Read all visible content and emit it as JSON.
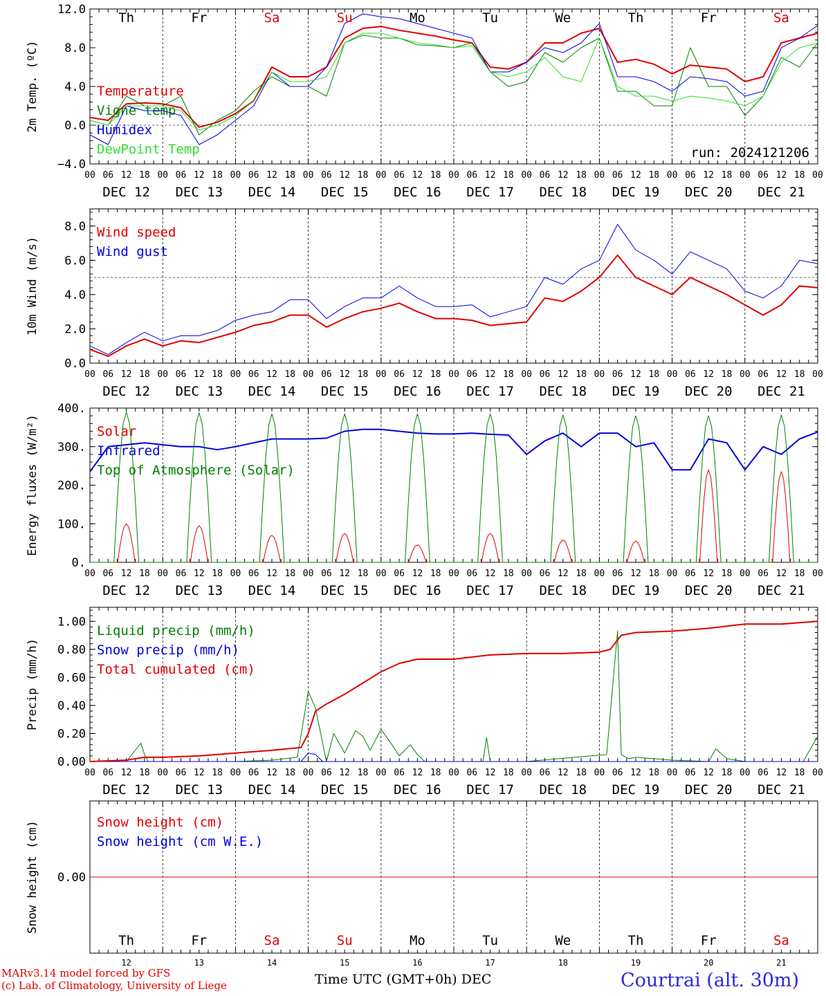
{
  "page": {
    "run_label": "run: 2024121206",
    "footer_left_1": "MARv3.14 model forced by GFS",
    "footer_left_2": "(c) Lab. of Climatology, University of Liege",
    "footer_center": "Time UTC (GMT+0h) DEC",
    "station": "Courtrai (alt. 30m)"
  },
  "colors": {
    "red": "#e00000",
    "blue": "#0000e0",
    "green": "#008000",
    "light_green": "#33dd33",
    "weekend": "#e00000",
    "weekday": "#000000"
  },
  "days": {
    "names": [
      "Th",
      "Fr",
      "Sa",
      "Su",
      "Mo",
      "Tu",
      "We",
      "Th",
      "Fr",
      "Sa"
    ],
    "weekend": [
      false,
      false,
      true,
      true,
      false,
      false,
      false,
      false,
      false,
      true
    ],
    "dates": [
      "DEC 12",
      "DEC 13",
      "DEC 14",
      "DEC 15",
      "DEC 16",
      "DEC 17",
      "DEC 18",
      "DEC 19",
      "DEC 20",
      "DEC 21"
    ],
    "day_numbers": [
      "12",
      "13",
      "14",
      "15",
      "16",
      "17",
      "18",
      "19",
      "20",
      "21"
    ],
    "hour_ticks": [
      "00",
      "06",
      "12",
      "18"
    ],
    "last_tick": "00"
  },
  "chart_data": [
    {
      "type": "line",
      "id": "temp",
      "ylabel": "2m Temp. (ºC)",
      "ylim": [
        -4,
        12
      ],
      "yticks": [
        "−4.0",
        "0.0",
        "4.0",
        "8.0",
        "12.0"
      ],
      "yticks_values": [
        -4,
        0,
        4,
        8,
        12
      ],
      "reference_line": 0,
      "x_unit": "days since DEC 12 00 UTC",
      "series": [
        {
          "name": "Temperature",
          "color": "#e00000",
          "width": 2,
          "x": [
            0,
            0.25,
            0.5,
            0.75,
            1,
            1.25,
            1.5,
            1.75,
            2,
            2.25,
            2.5,
            2.75,
            3,
            3.25,
            3.5,
            3.75,
            4,
            4.25,
            4.5,
            4.75,
            5,
            5.25,
            5.5,
            5.75,
            6,
            6.25,
            6.5,
            6.75,
            7,
            7.25,
            7.5,
            7.75,
            8,
            8.25,
            8.5,
            8.75,
            9,
            9.25,
            9.5,
            9.75,
            10
          ],
          "y": [
            0.8,
            0.5,
            2.2,
            2.3,
            2.2,
            1.8,
            -0.2,
            0.3,
            1.2,
            2.5,
            6.0,
            5.0,
            5.0,
            6.0,
            9.0,
            10.0,
            10.2,
            9.8,
            9.5,
            9.2,
            8.8,
            8.5,
            6.0,
            5.8,
            6.5,
            8.5,
            8.5,
            9.5,
            10.0,
            6.5,
            6.8,
            6.3,
            5.3,
            6.2,
            6.0,
            5.8,
            4.5,
            5.0,
            8.5,
            9.0,
            9.5
          ]
        },
        {
          "name": "Vigne temp",
          "color": "#008000",
          "width": 1,
          "x": [
            0,
            0.25,
            0.5,
            0.75,
            1,
            1.25,
            1.5,
            1.75,
            2,
            2.25,
            2.5,
            2.75,
            3,
            3.25,
            3.5,
            3.75,
            4,
            4.25,
            4.5,
            4.75,
            5,
            5.25,
            5.5,
            5.75,
            6,
            6.25,
            6.5,
            6.75,
            7,
            7.25,
            7.5,
            7.75,
            8,
            8.25,
            8.5,
            8.75,
            9,
            9.25,
            9.5,
            9.75,
            10
          ],
          "y": [
            0.5,
            0.0,
            3.0,
            2.0,
            2.0,
            3.0,
            -1.0,
            0.5,
            1.5,
            3.5,
            5.0,
            4.0,
            4.0,
            3.0,
            8.5,
            9.3,
            9.0,
            9.0,
            8.3,
            8.2,
            8.0,
            8.5,
            5.5,
            4.0,
            4.5,
            7.5,
            6.5,
            8.0,
            9.0,
            3.5,
            3.5,
            2.0,
            2.0,
            8.0,
            4.0,
            4.0,
            1.0,
            3.0,
            7.0,
            6.0,
            8.5
          ]
        },
        {
          "name": "Humidex",
          "color": "#0000e0",
          "width": 1,
          "x": [
            0,
            0.25,
            0.5,
            0.75,
            1,
            1.25,
            1.5,
            1.75,
            2,
            2.25,
            2.5,
            2.75,
            3,
            3.25,
            3.5,
            3.75,
            4,
            4.25,
            4.5,
            4.75,
            5,
            5.25,
            5.5,
            5.75,
            6,
            6.25,
            6.5,
            6.75,
            7,
            7.25,
            7.5,
            7.75,
            8,
            8.25,
            8.5,
            8.75,
            9,
            9.25,
            9.5,
            9.75,
            10
          ],
          "y": [
            -1.0,
            -2.0,
            2.0,
            1.5,
            1.5,
            1.0,
            -2.0,
            -1.0,
            0.5,
            2.0,
            5.5,
            4.0,
            4.0,
            6.0,
            10.5,
            11.5,
            11.2,
            11.0,
            10.5,
            10.0,
            9.5,
            9.0,
            5.5,
            5.5,
            6.5,
            8.0,
            7.5,
            8.5,
            10.5,
            5.0,
            5.0,
            4.5,
            3.5,
            5.0,
            4.8,
            4.5,
            3.0,
            3.5,
            8.0,
            9.0,
            10.3
          ]
        },
        {
          "name": "DewPoint Temp",
          "color": "#33dd33",
          "width": 1,
          "x": [
            0,
            0.25,
            0.5,
            0.75,
            1,
            1.25,
            1.5,
            1.75,
            2,
            2.25,
            2.5,
            2.75,
            3,
            3.25,
            3.5,
            3.75,
            4,
            4.25,
            4.5,
            4.75,
            5,
            5.25,
            5.5,
            5.75,
            6,
            6.25,
            6.5,
            6.75,
            7,
            7.25,
            7.5,
            7.75,
            8,
            8.25,
            8.5,
            8.75,
            9,
            9.25,
            9.5,
            9.75,
            10
          ],
          "y": [
            0.5,
            0.0,
            2.0,
            2.0,
            2.0,
            1.5,
            -0.5,
            0.0,
            1.0,
            2.5,
            5.5,
            4.5,
            4.5,
            5.0,
            8.5,
            9.5,
            9.5,
            9.0,
            8.5,
            8.3,
            8.0,
            8.2,
            5.5,
            5.0,
            5.5,
            7.0,
            5.0,
            4.5,
            9.0,
            4.0,
            3.0,
            3.0,
            2.5,
            3.0,
            2.8,
            2.5,
            2.0,
            3.0,
            6.5,
            8.0,
            8.5
          ]
        }
      ]
    },
    {
      "type": "line",
      "id": "wind",
      "ylabel": "10m Wind (m/s)",
      "ylim": [
        0,
        9
      ],
      "yticks": [
        "0.0",
        "2.0",
        "4.0",
        "6.0",
        "8.0"
      ],
      "yticks_values": [
        0,
        2,
        4,
        6,
        8
      ],
      "reference_line": 5,
      "x_unit": "days since DEC 12 00 UTC",
      "series": [
        {
          "name": "Wind speed",
          "color": "#e00000",
          "width": 2,
          "x": [
            0,
            0.25,
            0.5,
            0.75,
            1,
            1.25,
            1.5,
            1.75,
            2,
            2.25,
            2.5,
            2.75,
            3,
            3.25,
            3.5,
            3.75,
            4,
            4.25,
            4.5,
            4.75,
            5,
            5.25,
            5.5,
            5.75,
            6,
            6.25,
            6.5,
            6.75,
            7,
            7.25,
            7.5,
            7.75,
            8,
            8.25,
            8.5,
            8.75,
            9,
            9.25,
            9.5,
            9.75,
            10
          ],
          "y": [
            0.8,
            0.4,
            1.0,
            1.4,
            1.0,
            1.3,
            1.2,
            1.5,
            1.8,
            2.2,
            2.4,
            2.8,
            2.8,
            2.1,
            2.6,
            3.0,
            3.2,
            3.5,
            3.0,
            2.6,
            2.6,
            2.5,
            2.2,
            2.3,
            2.4,
            3.8,
            3.6,
            4.2,
            5.0,
            6.3,
            5.0,
            4.5,
            4.0,
            5.0,
            4.5,
            4.0,
            3.4,
            2.8,
            3.4,
            4.5,
            4.4
          ]
        },
        {
          "name": "Wind gust",
          "color": "#0000e0",
          "width": 1,
          "x": [
            0,
            0.25,
            0.5,
            0.75,
            1,
            1.25,
            1.5,
            1.75,
            2,
            2.25,
            2.5,
            2.75,
            3,
            3.25,
            3.5,
            3.75,
            4,
            4.25,
            4.5,
            4.75,
            5,
            5.25,
            5.5,
            5.75,
            6,
            6.25,
            6.5,
            6.75,
            7,
            7.25,
            7.5,
            7.75,
            8,
            8.25,
            8.5,
            8.75,
            9,
            9.25,
            9.5,
            9.75,
            10
          ],
          "y": [
            1.0,
            0.5,
            1.2,
            1.8,
            1.3,
            1.6,
            1.6,
            1.9,
            2.5,
            2.8,
            3.0,
            3.7,
            3.7,
            2.6,
            3.3,
            3.8,
            3.8,
            4.5,
            3.8,
            3.3,
            3.3,
            3.4,
            2.7,
            3.0,
            3.3,
            5.0,
            4.6,
            5.5,
            6.0,
            8.1,
            6.6,
            6.0,
            5.2,
            6.5,
            6.0,
            5.5,
            4.2,
            3.8,
            4.5,
            6.0,
            5.8
          ]
        }
      ]
    },
    {
      "type": "line",
      "id": "energy",
      "ylabel": "Energy fluxes (W/m²)",
      "ylim": [
        0,
        400
      ],
      "yticks": [
        "0.",
        "100.",
        "200.",
        "300.",
        "400."
      ],
      "yticks_values": [
        0,
        100,
        200,
        300,
        400
      ],
      "x_unit": "days since DEC 12 00 UTC",
      "series": [
        {
          "name": "Solar",
          "color": "#e00000",
          "width": 1,
          "peaks": [
            100,
            95,
            70,
            75,
            45,
            75,
            58,
            55,
            240,
            235
          ]
        },
        {
          "name": "Infrared",
          "color": "#0000e0",
          "width": 2,
          "x": [
            0,
            0.25,
            0.5,
            0.75,
            1,
            1.25,
            1.5,
            1.75,
            2,
            2.25,
            2.5,
            2.75,
            3,
            3.25,
            3.5,
            3.75,
            4,
            4.25,
            4.5,
            4.75,
            5,
            5.25,
            5.5,
            5.75,
            6,
            6.25,
            6.5,
            6.75,
            7,
            7.25,
            7.5,
            7.75,
            8,
            8.25,
            8.5,
            8.75,
            9,
            9.25,
            9.5,
            9.75,
            10
          ],
          "y": [
            235,
            300,
            305,
            310,
            305,
            300,
            300,
            292,
            300,
            310,
            320,
            320,
            320,
            322,
            340,
            345,
            345,
            340,
            335,
            333,
            333,
            335,
            332,
            330,
            280,
            315,
            335,
            300,
            335,
            335,
            300,
            310,
            240,
            240,
            320,
            310,
            240,
            300,
            280,
            320,
            338
          ]
        },
        {
          "name": "Top of Atmosphere (Solar)",
          "color": "#008000",
          "width": 1,
          "peaks": [
            390,
            388,
            385,
            385,
            385,
            385,
            382,
            380,
            380,
            382
          ]
        }
      ]
    },
    {
      "type": "line",
      "id": "precip",
      "ylabel": "Precip (mm/h)",
      "ylim": [
        0,
        1.1
      ],
      "yticks": [
        "0.00",
        "0.20",
        "0.40",
        "0.60",
        "0.80",
        "1.00"
      ],
      "yticks_values": [
        0,
        0.2,
        0.4,
        0.6,
        0.8,
        1.0
      ],
      "x_unit": "days since DEC 12 00 UTC",
      "series": [
        {
          "name": "Liquid precip (mm/h)",
          "color": "#008000",
          "width": 1,
          "x": [
            0,
            0.5,
            0.7,
            0.75,
            0.8,
            1.5,
            2.0,
            2.5,
            2.85,
            3.0,
            3.1,
            3.25,
            3.35,
            3.5,
            3.65,
            3.75,
            3.85,
            4.0,
            4.15,
            4.25,
            4.4,
            4.5,
            4.6,
            4.75,
            5.0,
            5.4,
            5.45,
            5.5,
            6.0,
            7.1,
            7.25,
            7.3,
            7.4,
            7.5,
            8.0,
            8.5,
            8.6,
            8.75,
            9.0,
            9.8,
            10.0
          ],
          "y": [
            0,
            0,
            0.13,
            0.05,
            0,
            0,
            0,
            0.01,
            0.03,
            0.5,
            0.38,
            0,
            0.2,
            0.06,
            0.22,
            0.18,
            0.08,
            0.23,
            0.12,
            0.04,
            0.12,
            0.05,
            0,
            0,
            0,
            0,
            0.17,
            0,
            0,
            0.05,
            0.93,
            0.05,
            0.02,
            0.03,
            0.01,
            0,
            0.09,
            0.02,
            0,
            0,
            0.18
          ]
        },
        {
          "name": "Snow precip (mm/h)",
          "color": "#0000e0",
          "width": 1,
          "x": [
            0,
            2.9,
            3.0,
            3.1,
            3.2,
            10
          ],
          "y": [
            0,
            0,
            0.06,
            0.05,
            0,
            0
          ]
        },
        {
          "name": "Total cumulated (cm)",
          "color": "#e00000",
          "width": 2,
          "x": [
            0,
            0.5,
            0.75,
            1,
            1.5,
            2,
            2.5,
            2.9,
            3.0,
            3.1,
            3.25,
            3.5,
            3.75,
            4.0,
            4.25,
            4.5,
            5.0,
            5.5,
            6.0,
            6.5,
            7.0,
            7.15,
            7.3,
            7.5,
            8.0,
            8.5,
            9.0,
            9.5,
            10.0
          ],
          "y": [
            0,
            0.01,
            0.03,
            0.03,
            0.04,
            0.06,
            0.08,
            0.1,
            0.2,
            0.36,
            0.41,
            0.48,
            0.56,
            0.64,
            0.7,
            0.73,
            0.73,
            0.76,
            0.77,
            0.77,
            0.78,
            0.8,
            0.9,
            0.92,
            0.93,
            0.95,
            0.98,
            0.98,
            1.0
          ]
        }
      ]
    },
    {
      "type": "line",
      "id": "snow",
      "ylabel": "Snow height (cm)",
      "ylim": [
        -1,
        1
      ],
      "yticks": [
        "0.00"
      ],
      "yticks_values": [
        0
      ],
      "x_unit": "days since DEC 12 00 UTC",
      "series": [
        {
          "name": "Snow height (cm)",
          "color": "#e00000",
          "width": 1,
          "x": [
            0,
            10
          ],
          "y": [
            0,
            0
          ]
        },
        {
          "name": "Snow height (cm W.E.)",
          "color": "#0000e0",
          "width": 1,
          "x": [],
          "y": []
        }
      ]
    }
  ]
}
